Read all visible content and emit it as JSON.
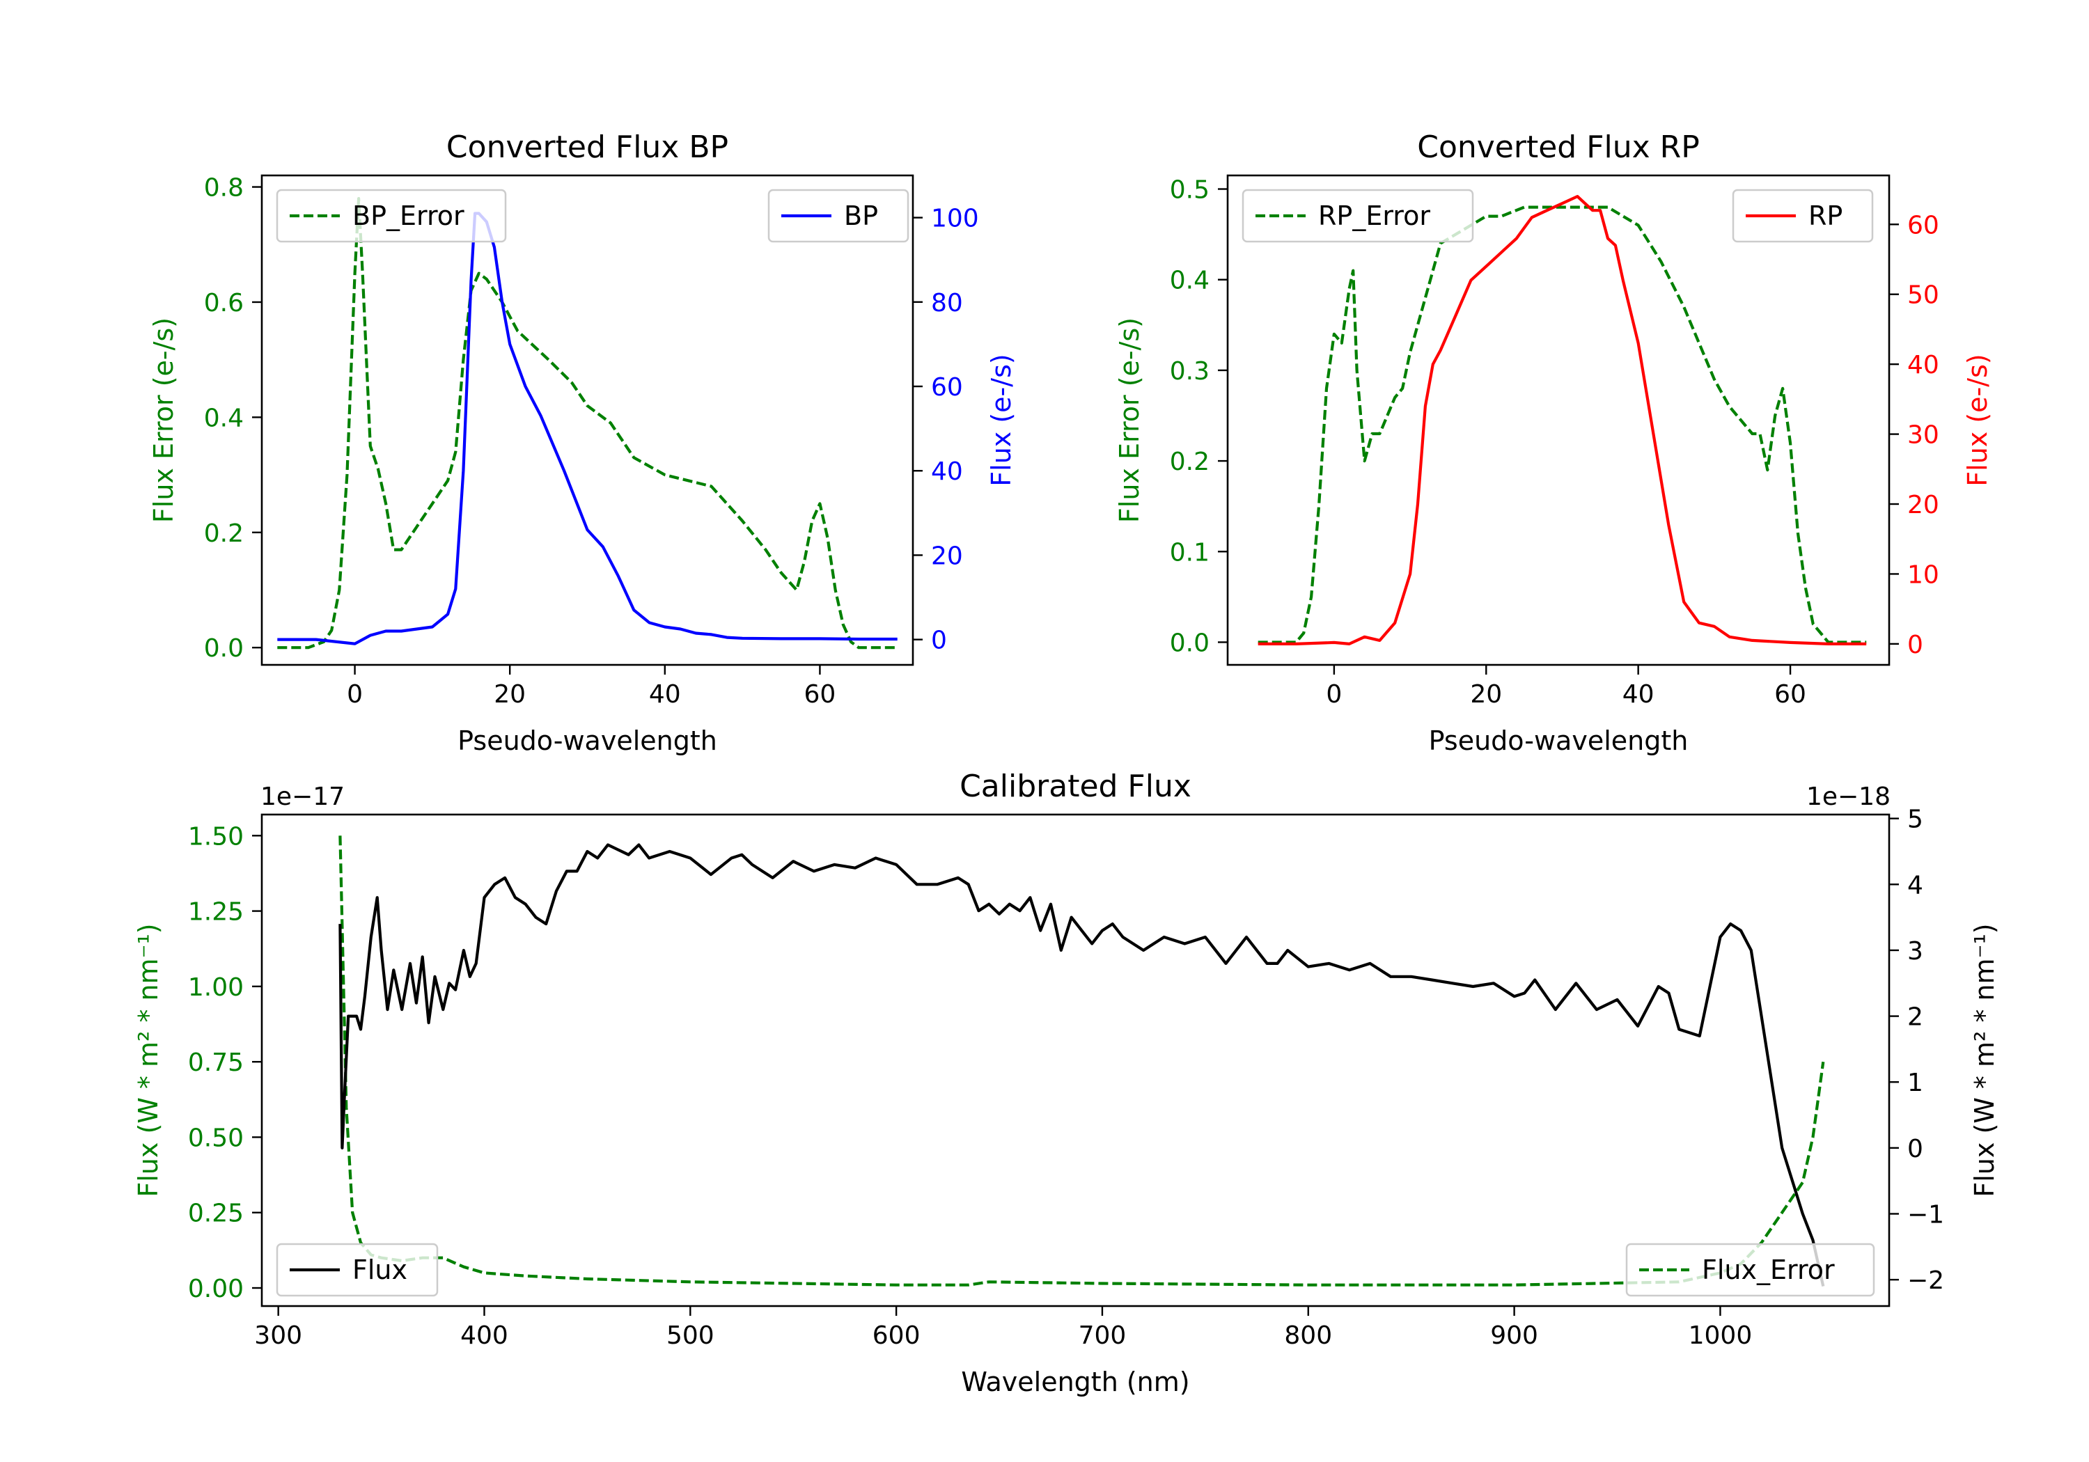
{
  "chart_data": [
    {
      "type": "line",
      "title": "Converted Flux BP",
      "xlabel": "Pseudo-wavelength",
      "ylabel_left": "Flux Error (e-/s)",
      "ylabel_right": "Flux (e-/s)",
      "xlim": [
        -12,
        72
      ],
      "ylim_left": [
        -0.03,
        0.82
      ],
      "ylim_right": [
        -6,
        110
      ],
      "xticks": [
        0,
        20,
        40,
        60
      ],
      "yticks_left": [
        "0.0",
        "0.2",
        "0.4",
        "0.6",
        "0.8"
      ],
      "yticks_right": [
        "0",
        "20",
        "40",
        "60",
        "80",
        "100"
      ],
      "legend_left": "BP_Error",
      "legend_right": "BP",
      "colors": {
        "left": "#008000",
        "right": "#0000ff"
      },
      "series": [
        {
          "name": "BP_Error",
          "axis": "left",
          "style": "dashed",
          "x": [
            -10,
            -6,
            -4,
            -3,
            -2,
            -1,
            0,
            0.5,
            1,
            2,
            3,
            4,
            5,
            6,
            8,
            10,
            12,
            13,
            14,
            15,
            16,
            17,
            19,
            21,
            25,
            28,
            30,
            33,
            36,
            40,
            43,
            46,
            50,
            53,
            55,
            57,
            58,
            59,
            60,
            61,
            62,
            63,
            64,
            65,
            70
          ],
          "y": [
            0,
            0,
            0.01,
            0.03,
            0.1,
            0.3,
            0.65,
            0.78,
            0.65,
            0.35,
            0.31,
            0.25,
            0.17,
            0.17,
            0.21,
            0.25,
            0.29,
            0.34,
            0.5,
            0.62,
            0.65,
            0.64,
            0.6,
            0.55,
            0.5,
            0.46,
            0.42,
            0.39,
            0.33,
            0.3,
            0.29,
            0.28,
            0.22,
            0.17,
            0.13,
            0.1,
            0.15,
            0.22,
            0.25,
            0.19,
            0.1,
            0.04,
            0.01,
            0,
            0
          ]
        },
        {
          "name": "BP",
          "axis": "right",
          "style": "solid",
          "x": [
            -10,
            -5,
            0,
            2,
            4,
            6,
            8,
            10,
            12,
            13,
            14,
            15,
            15.5,
            16,
            17,
            18,
            19,
            20,
            22,
            24,
            27,
            30,
            32,
            34,
            36,
            38,
            40,
            42,
            44,
            46,
            48,
            50,
            55,
            60,
            65,
            70
          ],
          "y": [
            0,
            0,
            -1,
            1,
            2,
            2,
            2.5,
            3,
            6,
            12,
            40,
            85,
            101,
            101,
            99,
            93,
            80,
            70,
            60,
            53,
            40,
            26,
            22,
            15,
            7,
            4,
            3,
            2.5,
            1.5,
            1.2,
            0.5,
            0.3,
            0.2,
            0.2,
            0.1,
            0.1
          ]
        }
      ]
    },
    {
      "type": "line",
      "title": "Converted Flux RP",
      "xlabel": "Pseudo-wavelength",
      "ylabel_left": "Flux Error (e-/s)",
      "ylabel_right": "Flux (e-/s)",
      "xlim": [
        -14,
        73
      ],
      "ylim_left": [
        -0.025,
        0.515
      ],
      "ylim_right": [
        -3,
        67
      ],
      "xticks": [
        0,
        20,
        40,
        60
      ],
      "yticks_left": [
        "0.0",
        "0.1",
        "0.2",
        "0.3",
        "0.4",
        "0.5"
      ],
      "yticks_right": [
        "0",
        "10",
        "20",
        "30",
        "40",
        "50",
        "60"
      ],
      "legend_left": "RP_Error",
      "legend_right": "RP",
      "colors": {
        "left": "#008000",
        "right": "#ff0000"
      },
      "series": [
        {
          "name": "RP_Error",
          "axis": "left",
          "style": "dashed",
          "x": [
            -10,
            -5,
            -4,
            -3,
            -2,
            -1,
            0,
            1,
            2,
            2.5,
            3,
            4,
            5,
            6,
            7,
            8,
            9,
            10,
            11,
            12,
            14,
            16,
            18,
            20,
            22,
            25,
            28,
            32,
            36,
            40,
            43,
            46,
            48,
            50,
            52,
            54,
            55,
            56,
            57,
            58,
            59,
            60,
            61,
            62,
            63,
            64,
            65,
            70
          ],
          "y": [
            0,
            0,
            0.01,
            0.05,
            0.15,
            0.28,
            0.34,
            0.33,
            0.39,
            0.41,
            0.3,
            0.2,
            0.23,
            0.23,
            0.25,
            0.27,
            0.28,
            0.32,
            0.35,
            0.38,
            0.44,
            0.45,
            0.46,
            0.47,
            0.47,
            0.48,
            0.48,
            0.48,
            0.48,
            0.46,
            0.42,
            0.37,
            0.33,
            0.29,
            0.26,
            0.24,
            0.23,
            0.23,
            0.19,
            0.25,
            0.28,
            0.22,
            0.12,
            0.06,
            0.02,
            0.01,
            0,
            0
          ]
        },
        {
          "name": "RP",
          "axis": "right",
          "style": "solid",
          "x": [
            -10,
            -5,
            0,
            2,
            4,
            6,
            8,
            10,
            11,
            12,
            13,
            14,
            16,
            18,
            20,
            22,
            24,
            26,
            28,
            30,
            32,
            33,
            34,
            35,
            36,
            37,
            38,
            40,
            42,
            44,
            46,
            48,
            50,
            52,
            55,
            60,
            65,
            70
          ],
          "y": [
            0,
            0,
            0.2,
            0,
            1,
            0.5,
            3,
            10,
            20,
            34,
            40,
            42,
            47,
            52,
            54,
            56,
            58,
            61,
            62,
            63,
            64,
            63,
            62,
            62,
            58,
            57,
            52,
            43,
            30,
            17,
            6,
            3,
            2.5,
            1,
            0.5,
            0.2,
            0,
            0
          ]
        }
      ]
    },
    {
      "type": "line",
      "title": "Calibrated Flux",
      "xlabel": "Wavelength (nm)",
      "ylabel_left": "Flux (W * m² * nm⁻¹)",
      "ylabel_right": "Flux (W * m² * nm⁻¹)",
      "offset_left": "1e−17",
      "offset_right": "1e−18",
      "xlim": [
        292,
        1082
      ],
      "ylim_left": [
        -0.06,
        1.57
      ],
      "ylim_right": [
        -2.4,
        5.06
      ],
      "xticks": [
        300,
        400,
        500,
        600,
        700,
        800,
        900,
        1000
      ],
      "yticks_left": [
        "0.00",
        "0.25",
        "0.50",
        "0.75",
        "1.00",
        "1.25",
        "1.50"
      ],
      "yticks_right": [
        "−2",
        "−1",
        "0",
        "1",
        "2",
        "3",
        "4",
        "5"
      ],
      "legend_left": "Flux",
      "legend_right": "Flux_Error",
      "colors": {
        "left": "#008000",
        "right": "#000000"
      },
      "series": [
        {
          "name": "Flux_Error",
          "axis": "left",
          "style": "dashed",
          "x": [
            330,
            331,
            333,
            336,
            340,
            345,
            350,
            360,
            370,
            380,
            390,
            400,
            420,
            450,
            500,
            550,
            600,
            635,
            645,
            700,
            800,
            900,
            980,
            1000,
            1010,
            1020,
            1030,
            1040,
            1045,
            1050
          ],
          "y": [
            1.5,
            1.2,
            0.6,
            0.25,
            0.15,
            0.11,
            0.1,
            0.09,
            0.1,
            0.1,
            0.07,
            0.05,
            0.04,
            0.03,
            0.02,
            0.015,
            0.01,
            0.01,
            0.02,
            0.015,
            0.01,
            0.01,
            0.02,
            0.05,
            0.08,
            0.15,
            0.25,
            0.35,
            0.5,
            0.75
          ]
        },
        {
          "name": "Flux",
          "axis": "right",
          "style": "solid",
          "x": [
            330,
            331,
            332,
            334,
            336,
            338,
            340,
            342,
            345,
            348,
            350,
            353,
            356,
            360,
            364,
            367,
            370,
            373,
            376,
            380,
            383,
            386,
            390,
            393,
            396,
            400,
            405,
            410,
            415,
            420,
            425,
            430,
            435,
            440,
            445,
            450,
            455,
            460,
            470,
            475,
            480,
            490,
            500,
            510,
            520,
            525,
            530,
            540,
            550,
            560,
            570,
            580,
            590,
            600,
            610,
            620,
            630,
            635,
            640,
            645,
            650,
            655,
            660,
            665,
            670,
            675,
            680,
            685,
            690,
            695,
            700,
            705,
            710,
            720,
            730,
            740,
            750,
            760,
            770,
            780,
            785,
            790,
            800,
            810,
            820,
            830,
            840,
            850,
            860,
            870,
            880,
            890,
            900,
            905,
            910,
            920,
            930,
            940,
            950,
            960,
            970,
            975,
            980,
            990,
            1000,
            1005,
            1010,
            1015,
            1020,
            1030,
            1040,
            1045,
            1050
          ],
          "y": [
            3.4,
            0,
            0.7,
            2.0,
            2.0,
            2.0,
            1.8,
            2.3,
            3.2,
            3.8,
            3.0,
            2.1,
            2.7,
            2.1,
            2.8,
            2.2,
            2.9,
            1.9,
            2.6,
            2.1,
            2.5,
            2.4,
            3.0,
            2.6,
            2.8,
            3.8,
            4.0,
            4.1,
            3.8,
            3.7,
            3.5,
            3.4,
            3.9,
            4.2,
            4.2,
            4.5,
            4.4,
            4.6,
            4.45,
            4.6,
            4.4,
            4.5,
            4.4,
            4.15,
            4.4,
            4.45,
            4.3,
            4.1,
            4.35,
            4.2,
            4.3,
            4.25,
            4.4,
            4.3,
            4.0,
            4.0,
            4.1,
            4.0,
            3.6,
            3.7,
            3.55,
            3.7,
            3.6,
            3.8,
            3.3,
            3.7,
            3.0,
            3.5,
            3.3,
            3.1,
            3.3,
            3.4,
            3.2,
            3.0,
            3.2,
            3.1,
            3.2,
            2.8,
            3.2,
            2.8,
            2.8,
            3.0,
            2.75,
            2.8,
            2.7,
            2.8,
            2.6,
            2.6,
            2.55,
            2.5,
            2.45,
            2.5,
            2.3,
            2.35,
            2.55,
            2.1,
            2.5,
            2.1,
            2.25,
            1.85,
            2.45,
            2.35,
            1.8,
            1.7,
            3.2,
            3.4,
            3.3,
            3.0,
            2.0,
            0.0,
            -1.0,
            -1.4,
            -2.1
          ]
        }
      ]
    }
  ]
}
